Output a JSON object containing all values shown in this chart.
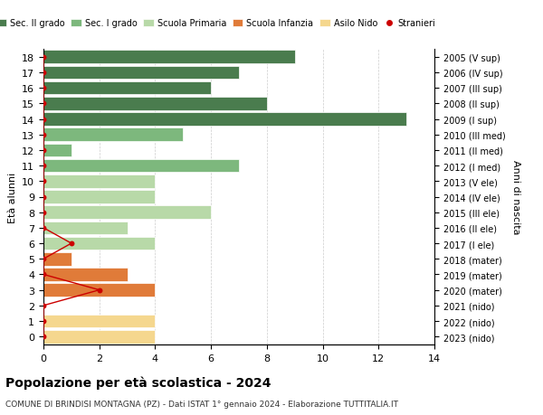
{
  "ages": [
    18,
    17,
    16,
    15,
    14,
    13,
    12,
    11,
    10,
    9,
    8,
    7,
    6,
    5,
    4,
    3,
    2,
    1,
    0
  ],
  "years": [
    "2005 (V sup)",
    "2006 (IV sup)",
    "2007 (III sup)",
    "2008 (II sup)",
    "2009 (I sup)",
    "2010 (III med)",
    "2011 (II med)",
    "2012 (I med)",
    "2013 (V ele)",
    "2014 (IV ele)",
    "2015 (III ele)",
    "2016 (II ele)",
    "2017 (I ele)",
    "2018 (mater)",
    "2019 (mater)",
    "2020 (mater)",
    "2021 (nido)",
    "2022 (nido)",
    "2023 (nido)"
  ],
  "bar_values": [
    9,
    7,
    6,
    8,
    13,
    5,
    1,
    7,
    4,
    4,
    6,
    3,
    4,
    1,
    3,
    4,
    0,
    4,
    4
  ],
  "bar_colors": [
    "#4a7c4e",
    "#4a7c4e",
    "#4a7c4e",
    "#4a7c4e",
    "#4a7c4e",
    "#7db87d",
    "#7db87d",
    "#7db87d",
    "#b8d9a8",
    "#b8d9a8",
    "#b8d9a8",
    "#b8d9a8",
    "#b8d9a8",
    "#e07b39",
    "#e07b39",
    "#e07b39",
    "#f5d78e",
    "#f5d78e",
    "#f5d78e"
  ],
  "stranieri_ages": [
    18,
    17,
    16,
    15,
    14,
    13,
    12,
    11,
    10,
    9,
    8,
    7,
    6,
    5,
    4,
    3,
    2,
    1,
    0
  ],
  "stranieri_x": [
    0,
    0,
    0,
    0,
    0,
    0,
    0,
    0,
    0,
    0,
    0,
    0,
    1,
    0,
    0,
    2,
    0,
    0,
    0
  ],
  "legend_labels": [
    "Sec. II grado",
    "Sec. I grado",
    "Scuola Primaria",
    "Scuola Infanzia",
    "Asilo Nido",
    "Stranieri"
  ],
  "legend_colors": [
    "#4a7c4e",
    "#7db87d",
    "#b8d9a8",
    "#e07b39",
    "#f5d78e",
    "#cc0000"
  ],
  "title": "Popolazione per età scolastica - 2024",
  "subtitle": "COMUNE DI BRINDISI MONTAGNA (PZ) - Dati ISTAT 1° gennaio 2024 - Elaborazione TUTTITALIA.IT",
  "ylabel_left": "Età alunni",
  "ylabel_right": "Anni di nascita",
  "xlim": [
    0,
    14
  ],
  "xticks": [
    0,
    2,
    4,
    6,
    8,
    10,
    12,
    14
  ],
  "stranieri_color": "#cc0000",
  "bg_color": "#ffffff",
  "grid_color": "#cccccc"
}
